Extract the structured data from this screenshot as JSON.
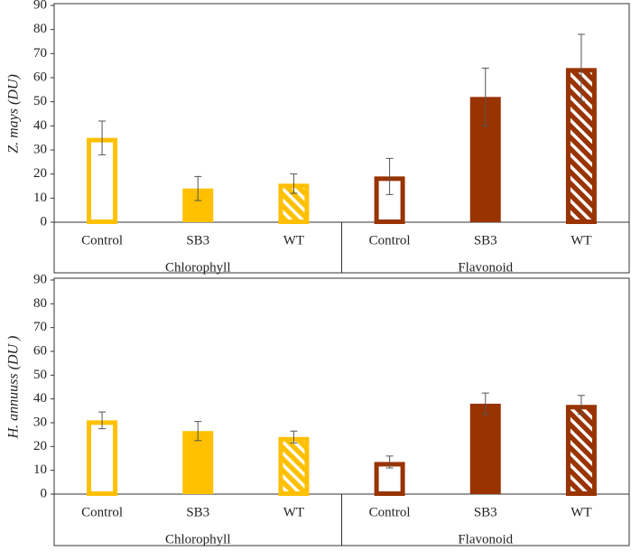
{
  "chart_data": [
    {
      "type": "bar",
      "y_label": "Z. mays (DU)",
      "ylim": [
        0,
        90
      ],
      "yticks": [
        0,
        10,
        20,
        30,
        40,
        50,
        60,
        70,
        80,
        90
      ],
      "bar_styles": [
        "outline",
        "solid",
        "hatch"
      ],
      "groups": [
        {
          "name": "Chlorophyll",
          "color": "#ffc000",
          "categories": [
            "Control",
            "SB3",
            "WT"
          ],
          "values": [
            35,
            14,
            16
          ],
          "errors": [
            7,
            5,
            4
          ]
        },
        {
          "name": "Flavonoid",
          "color": "#993300",
          "categories": [
            "Control",
            "SB3",
            "WT"
          ],
          "values": [
            19,
            52,
            64
          ],
          "errors": [
            7.5,
            12,
            14
          ]
        }
      ]
    },
    {
      "type": "bar",
      "y_label": "H. annuuss (DU )",
      "ylim": [
        0,
        90
      ],
      "yticks": [
        0,
        10,
        20,
        30,
        40,
        50,
        60,
        70,
        80,
        90
      ],
      "bar_styles": [
        "outline",
        "solid",
        "hatch"
      ],
      "groups": [
        {
          "name": "Chlorophyll",
          "color": "#ffc000",
          "categories": [
            "Control",
            "SB3",
            "WT"
          ],
          "values": [
            31,
            26.5,
            24
          ],
          "errors": [
            3.5,
            4,
            2.5
          ]
        },
        {
          "name": "Flavonoid",
          "color": "#993300",
          "categories": [
            "Control",
            "SB3",
            "WT"
          ],
          "values": [
            13.5,
            38,
            37.5
          ],
          "errors": [
            2.5,
            4.5,
            4
          ]
        }
      ]
    }
  ]
}
